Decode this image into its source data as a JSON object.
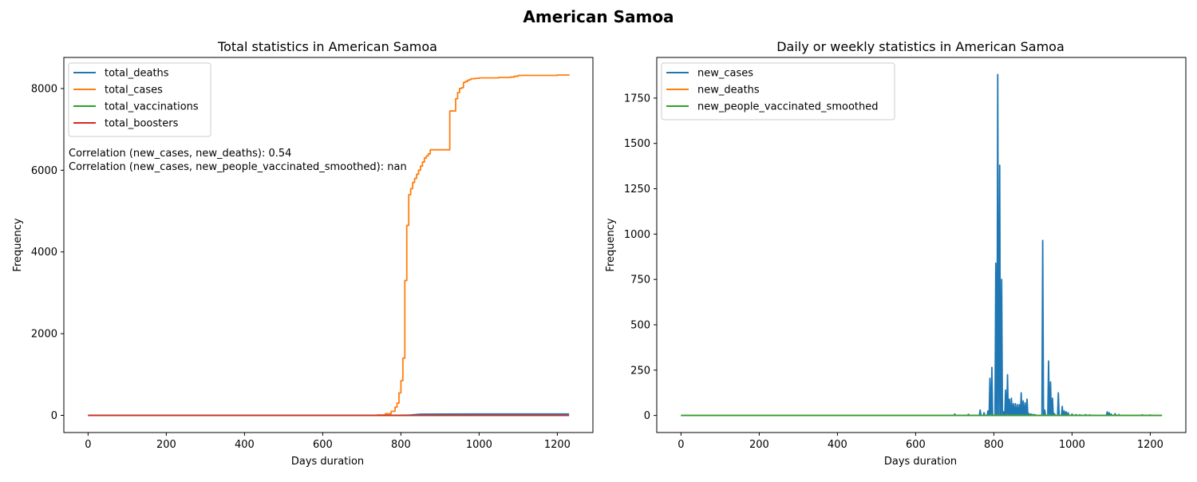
{
  "figure_title": "American Samoa",
  "colors": {
    "blue": "#1f77b4",
    "orange": "#ff7f0e",
    "green": "#2ca02c",
    "red": "#d62728"
  },
  "chart_data": [
    {
      "type": "line",
      "title": "Total statistics in American Samoa",
      "xlabel": "Days duration",
      "ylabel": "Frequency",
      "xlim": [
        -62,
        1291
      ],
      "ylim": [
        -420,
        8760
      ],
      "xticks": [
        0,
        200,
        400,
        600,
        800,
        1000,
        1200
      ],
      "yticks": [
        0,
        2000,
        4000,
        6000,
        8000
      ],
      "legend_position": "upper-left",
      "annotations": [
        "Correlation (new_cases, new_deaths): 0.54",
        "Correlation (new_cases, new_people_vaccinated_smoothed): nan"
      ],
      "series": [
        {
          "name": "total_deaths",
          "color": "#1f77b4",
          "x": [
            0,
            780,
            820,
            850,
            900,
            1000,
            1100,
            1230
          ],
          "y": [
            0,
            0,
            5,
            28,
            31,
            33,
            34,
            34
          ]
        },
        {
          "name": "total_cases",
          "color": "#ff7f0e",
          "step": true,
          "x": [
            0,
            700,
            740,
            760,
            775,
            785,
            790,
            795,
            800,
            805,
            810,
            815,
            820,
            825,
            830,
            835,
            840,
            845,
            850,
            855,
            860,
            865,
            870,
            875,
            880,
            885,
            890,
            895,
            900,
            905,
            910,
            925,
            930,
            935,
            940,
            945,
            950,
            955,
            960,
            965,
            970,
            975,
            980,
            990,
            1000,
            1050,
            1080,
            1090,
            1100,
            1150,
            1200,
            1230
          ],
          "y": [
            0,
            3,
            10,
            40,
            100,
            200,
            300,
            550,
            850,
            1400,
            3300,
            4650,
            5400,
            5550,
            5700,
            5800,
            5900,
            6000,
            6100,
            6200,
            6300,
            6350,
            6400,
            6500,
            6500,
            6500,
            6500,
            6500,
            6500,
            6500,
            6500,
            7450,
            7450,
            7450,
            7750,
            7900,
            8000,
            8020,
            8150,
            8170,
            8200,
            8220,
            8240,
            8250,
            8260,
            8270,
            8280,
            8300,
            8320,
            8320,
            8330,
            8340
          ]
        },
        {
          "name": "total_vaccinations",
          "color": "#2ca02c",
          "x": [
            0,
            1230
          ],
          "y": [
            0,
            0
          ]
        },
        {
          "name": "total_boosters",
          "color": "#d62728",
          "x": [
            0,
            1230
          ],
          "y": [
            0,
            0
          ]
        }
      ]
    },
    {
      "type": "line",
      "title": "Daily or weekly statistics in American Samoa",
      "xlabel": "Days duration",
      "ylabel": "Frequency",
      "xlim": [
        -62,
        1291
      ],
      "ylim": [
        -94,
        1974
      ],
      "xticks": [
        0,
        200,
        400,
        600,
        800,
        1000,
        1200
      ],
      "yticks": [
        0,
        250,
        500,
        750,
        1000,
        1250,
        1500,
        1750
      ],
      "legend_position": "upper-left",
      "series": [
        {
          "name": "new_cases",
          "color": "#1f77b4",
          "impulse": true,
          "x": [
            700,
            735,
            765,
            775,
            785,
            790,
            795,
            805,
            810,
            815,
            820,
            825,
            830,
            835,
            840,
            845,
            850,
            855,
            860,
            865,
            870,
            875,
            880,
            885,
            890,
            895,
            900,
            905,
            925,
            930,
            940,
            945,
            950,
            955,
            965,
            975,
            980,
            985,
            990,
            1000,
            1010,
            1020,
            1035,
            1045,
            1090,
            1095,
            1100,
            1110,
            1120,
            1180,
            1200
          ],
          "y": [
            8,
            7,
            30,
            15,
            25,
            205,
            265,
            840,
            1880,
            1380,
            750,
            20,
            140,
            225,
            90,
            95,
            65,
            65,
            60,
            60,
            125,
            80,
            70,
            90,
            10,
            8,
            6,
            5,
            965,
            30,
            300,
            185,
            95,
            10,
            125,
            50,
            25,
            20,
            15,
            8,
            5,
            4,
            5,
            4,
            20,
            15,
            8,
            10,
            5,
            4,
            3
          ]
        },
        {
          "name": "new_deaths",
          "color": "#ff7f0e",
          "x": [
            0,
            1230
          ],
          "y": [
            0,
            0
          ]
        },
        {
          "name": "new_people_vaccinated_smoothed",
          "color": "#2ca02c",
          "x": [
            0,
            1230
          ],
          "y": [
            0,
            0
          ]
        }
      ]
    }
  ]
}
